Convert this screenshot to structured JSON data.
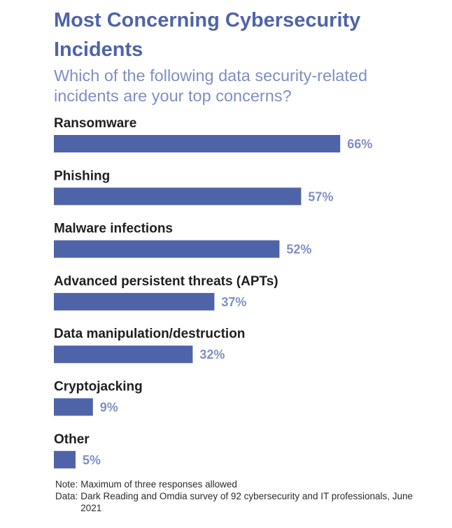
{
  "header": {
    "title": "Most Concerning Cybersecurity Incidents",
    "subtitle": "Which of the following data security-related incidents are your top concerns?"
  },
  "footer": {
    "note_key": "Note:",
    "note_text": "Maximum of three responses allowed",
    "data_key": "Data:",
    "data_text": "Dark Reading and Omdia survey of 92 cybersecurity and IT professionals, June 2021"
  },
  "colors": {
    "bar": "#4f64a8",
    "title": "#4f64a8",
    "value_label": "#7f8fc4",
    "category_label": "#1f1f1f"
  },
  "chart_data": {
    "type": "bar",
    "orientation": "horizontal",
    "title": "Most Concerning Cybersecurity Incidents",
    "subtitle": "Which of the following data security-related incidents are your top concerns?",
    "categories": [
      "Ransomware",
      "Phishing",
      "Malware infections",
      "Advanced persistent threats (APTs)",
      "Data manipulation/destruction",
      "Cryptojacking",
      "Other"
    ],
    "values": [
      66,
      57,
      52,
      37,
      32,
      9,
      5
    ],
    "value_labels": [
      "66%",
      "57%",
      "52%",
      "37%",
      "32%",
      "9%",
      "5%"
    ],
    "unit": "%",
    "xlim": [
      0,
      100
    ],
    "grid": false,
    "legend": "none"
  }
}
